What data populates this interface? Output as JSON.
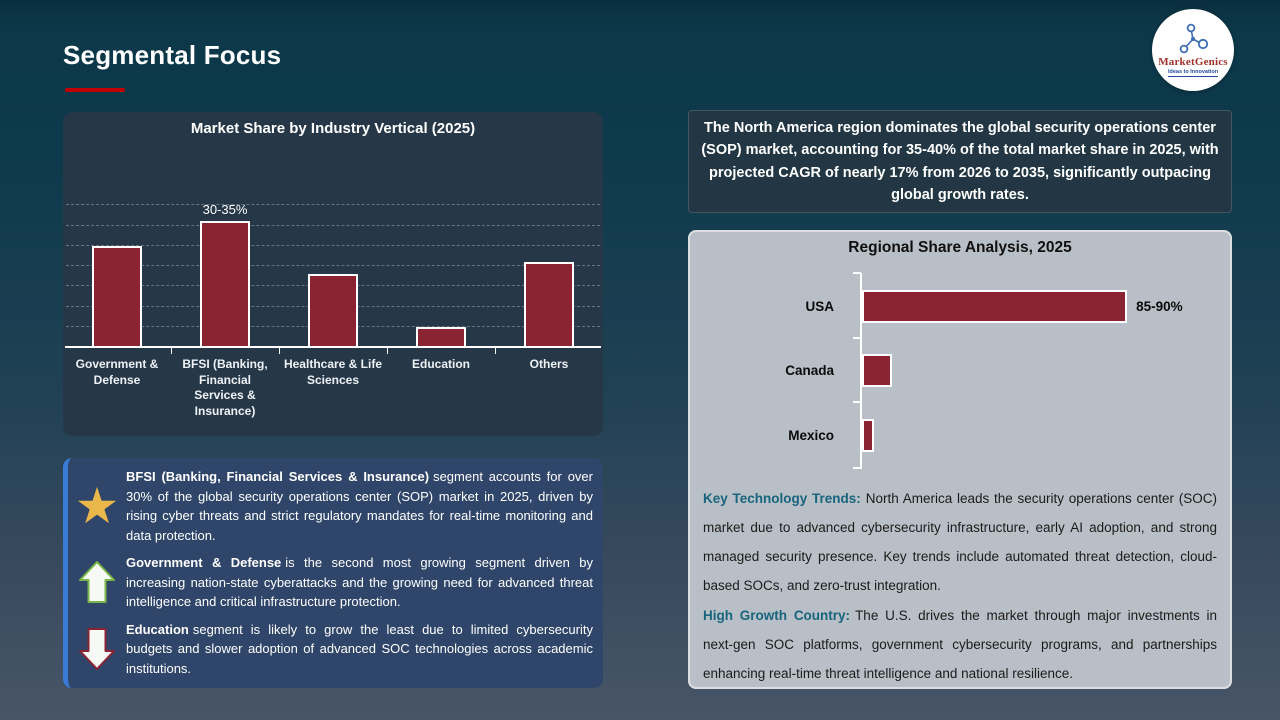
{
  "slide": {
    "title": "Segmental Focus",
    "accent_color": "#c00000",
    "background_top": "#0d3a4c",
    "background_bottom": "#485568"
  },
  "logo": {
    "name": "MarketGenics",
    "tagline": "Ideas to Innovation",
    "icon": "molecule-icon",
    "name_color": "#a3312a",
    "tagline_color": "#27489e"
  },
  "callout": {
    "text": "The North America region dominates the global security operations center (SOP) market, accounting for 35-40% of the total market share in 2025, with projected CAGR of nearly 17% from 2026 to 2035, significantly outpacing global growth rates."
  },
  "chart_data": [
    {
      "type": "bar",
      "orientation": "vertical",
      "title": "Market Share by Industry Vertical (2025)",
      "categories": [
        "Government & Defense",
        "BFSI (Banking, Financial Services & Insurance)",
        "Healthcare & Life Sciences",
        "Education",
        "Others"
      ],
      "values": [
        25,
        31,
        18,
        5,
        21
      ],
      "unit": "%",
      "data_labels": [
        "",
        "30-35%",
        "",
        "",
        ""
      ],
      "ylim": [
        0,
        35
      ],
      "grid": "horizontal dashed every 5%",
      "bar_color": "#8a2332",
      "bar_border_color": "#ffffff",
      "panel_color": "#263848"
    },
    {
      "type": "bar",
      "orientation": "horizontal",
      "title": "Regional Share Analysis, 2025",
      "categories": [
        "USA",
        "Canada",
        "Mexico"
      ],
      "values": [
        87.5,
        10,
        4
      ],
      "unit": "%",
      "data_labels": [
        "85-90%",
        "",
        ""
      ],
      "xlim": [
        0,
        100
      ],
      "grid": "off",
      "bar_color": "#8a2332",
      "bar_border_color": "#ffffff",
      "panel_color": "#b9bfc6"
    }
  ],
  "insights": {
    "items": [
      {
        "icon": "star-icon",
        "bold": "BFSI (Banking, Financial Services & Insurance)",
        "text": "segment accounts for over 30% of the global security operations center (SOP) market in 2025, driven by rising cyber threats and strict regulatory mandates for real-time monitoring and data protection."
      },
      {
        "icon": "arrow-up-icon",
        "bold": "Government & Defense",
        "text": "is the second most growing segment driven by increasing nation-state cyberattacks and the growing need for advanced threat intelligence and critical infrastructure protection."
      },
      {
        "icon": "arrow-down-icon",
        "bold": "Education",
        "text": "segment is likely to grow the least due to limited cybersecurity budgets and slower adoption of advanced SOC technologies across academic institutions."
      }
    ]
  },
  "regional_notes": [
    {
      "label": "Key Technology Trends:",
      "text": "North America leads the security operations center (SOC) market due to advanced cybersecurity infrastructure, early AI adoption, and strong managed security presence. Key trends include automated threat detection, cloud-based SOCs, and zero-trust integration."
    },
    {
      "label": "High Growth Country:",
      "text": "The U.S. drives the market through major investments in next-gen SOC platforms, government cybersecurity programs, and partnerships enhancing real-time threat intelligence and national resilience."
    }
  ]
}
